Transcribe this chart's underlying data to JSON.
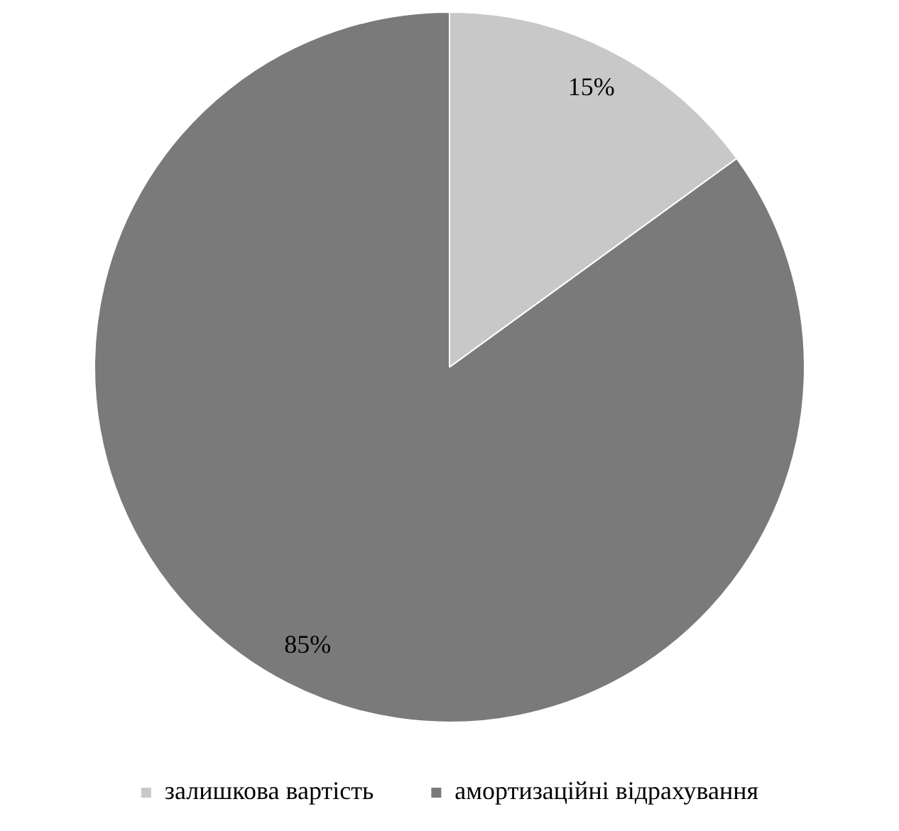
{
  "chart_data": {
    "type": "pie",
    "categories": [
      "залишкова вартість",
      "амортизаційні відрахування"
    ],
    "values": [
      15,
      85
    ],
    "colors": [
      "#c8c8c8",
      "#7a7a7a"
    ],
    "value_labels": [
      "15%",
      "85%"
    ],
    "legend": "bottom"
  }
}
